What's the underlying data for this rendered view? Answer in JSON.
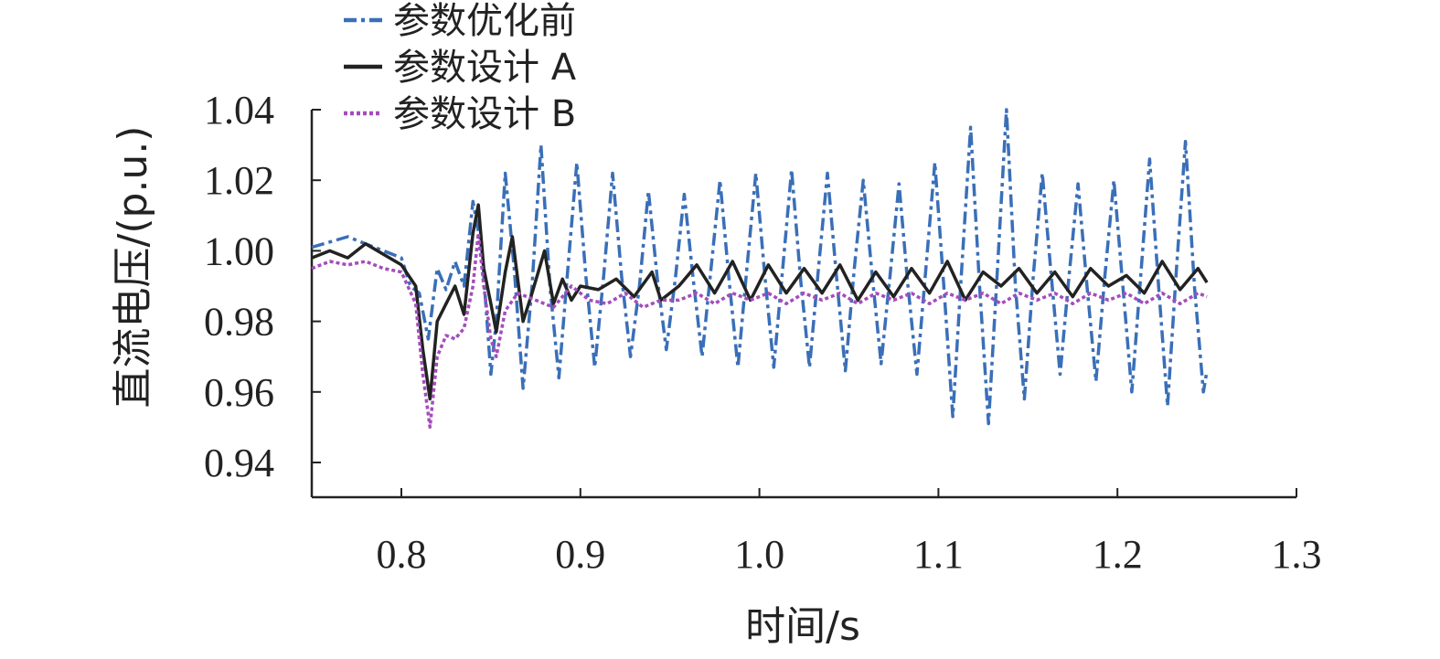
{
  "chart_data": {
    "type": "line",
    "xlabel": "时间/s",
    "ylabel": "直流电压/(p.u.)",
    "xlim": [
      0.75,
      1.3
    ],
    "ylim": [
      0.93,
      1.04
    ],
    "x_ticks": [
      "0.8",
      "0.9",
      "1.0",
      "1.1",
      "1.2",
      "1.3"
    ],
    "y_ticks": [
      "0.94",
      "0.96",
      "0.98",
      "1.00",
      "1.02",
      "1.04"
    ],
    "legend_position": "top-left",
    "series": [
      {
        "name": "参数优化前",
        "color": "#3a6fb8",
        "line_style": "dash-dot",
        "x": [
          0.75,
          0.77,
          0.78,
          0.79,
          0.8,
          0.805,
          0.81,
          0.815,
          0.82,
          0.825,
          0.83,
          0.835,
          0.84,
          0.845,
          0.85,
          0.853,
          0.858,
          0.863,
          0.868,
          0.873,
          0.878,
          0.883,
          0.888,
          0.893,
          0.898,
          0.903,
          0.908,
          0.913,
          0.918,
          0.923,
          0.928,
          0.933,
          0.938,
          0.943,
          0.948,
          0.953,
          0.958,
          0.963,
          0.968,
          0.973,
          0.978,
          0.983,
          0.988,
          0.993,
          0.998,
          1.003,
          1.008,
          1.013,
          1.018,
          1.023,
          1.028,
          1.033,
          1.038,
          1.043,
          1.048,
          1.053,
          1.058,
          1.063,
          1.068,
          1.073,
          1.078,
          1.083,
          1.088,
          1.093,
          1.098,
          1.103,
          1.108,
          1.113,
          1.118,
          1.123,
          1.128,
          1.133,
          1.138,
          1.143,
          1.148,
          1.153,
          1.158,
          1.163,
          1.168,
          1.173,
          1.178,
          1.183,
          1.188,
          1.193,
          1.198,
          1.203,
          1.208,
          1.213,
          1.218,
          1.223,
          1.228,
          1.233,
          1.238,
          1.243,
          1.248,
          1.25
        ],
        "values": [
          1.001,
          1.004,
          1.002,
          1.0,
          0.998,
          0.99,
          0.988,
          0.975,
          0.995,
          0.989,
          0.997,
          0.99,
          1.014,
          1.0,
          0.965,
          0.98,
          1.022,
          0.995,
          0.961,
          0.99,
          1.03,
          0.99,
          0.964,
          0.995,
          1.025,
          0.993,
          0.967,
          0.993,
          1.022,
          0.993,
          0.97,
          0.99,
          1.017,
          0.992,
          0.972,
          0.992,
          1.016,
          0.992,
          0.97,
          0.995,
          1.02,
          0.992,
          0.967,
          0.995,
          1.022,
          0.993,
          0.967,
          0.995,
          1.023,
          0.992,
          0.967,
          0.995,
          1.022,
          0.993,
          0.966,
          0.995,
          1.02,
          0.993,
          0.968,
          0.993,
          1.019,
          0.99,
          0.965,
          0.995,
          1.025,
          0.99,
          0.953,
          0.995,
          1.035,
          0.99,
          0.951,
          0.995,
          1.04,
          0.99,
          0.958,
          0.993,
          1.022,
          0.993,
          0.965,
          0.993,
          1.019,
          0.99,
          0.963,
          0.993,
          1.02,
          0.99,
          0.96,
          0.993,
          1.026,
          0.99,
          0.956,
          0.995,
          1.031,
          0.99,
          0.96,
          0.966
        ]
      },
      {
        "name": "参数设计 A",
        "color": "#222222",
        "line_style": "solid",
        "x": [
          0.75,
          0.76,
          0.77,
          0.78,
          0.79,
          0.8,
          0.808,
          0.812,
          0.816,
          0.82,
          0.825,
          0.83,
          0.835,
          0.84,
          0.843,
          0.846,
          0.85,
          0.853,
          0.858,
          0.862,
          0.868,
          0.873,
          0.88,
          0.885,
          0.89,
          0.895,
          0.9,
          0.91,
          0.92,
          0.93,
          0.94,
          0.945,
          0.955,
          0.965,
          0.975,
          0.985,
          0.995,
          1.005,
          1.015,
          1.025,
          1.035,
          1.045,
          1.055,
          1.065,
          1.075,
          1.085,
          1.095,
          1.105,
          1.115,
          1.125,
          1.135,
          1.145,
          1.155,
          1.165,
          1.175,
          1.185,
          1.195,
          1.205,
          1.215,
          1.225,
          1.235,
          1.245,
          1.25
        ],
        "values": [
          0.998,
          1.0,
          0.998,
          1.002,
          0.999,
          0.996,
          0.99,
          0.972,
          0.958,
          0.98,
          0.985,
          0.99,
          0.982,
          1.005,
          1.013,
          0.995,
          0.985,
          0.977,
          0.994,
          1.004,
          0.98,
          0.988,
          1.0,
          0.985,
          0.992,
          0.986,
          0.99,
          0.989,
          0.992,
          0.987,
          0.994,
          0.986,
          0.99,
          0.996,
          0.988,
          0.997,
          0.986,
          0.996,
          0.988,
          0.995,
          0.988,
          0.996,
          0.986,
          0.994,
          0.987,
          0.995,
          0.988,
          0.997,
          0.986,
          0.994,
          0.99,
          0.995,
          0.988,
          0.994,
          0.987,
          0.995,
          0.99,
          0.993,
          0.988,
          0.997,
          0.989,
          0.995,
          0.991
        ]
      },
      {
        "name": "参数设计 B",
        "color": "#a44dbb",
        "line_style": "dotted",
        "x": [
          0.75,
          0.76,
          0.77,
          0.78,
          0.79,
          0.8,
          0.808,
          0.812,
          0.816,
          0.82,
          0.825,
          0.83,
          0.835,
          0.84,
          0.843,
          0.846,
          0.85,
          0.853,
          0.858,
          0.865,
          0.875,
          0.885,
          0.895,
          0.905,
          0.915,
          0.925,
          0.935,
          0.945,
          0.955,
          0.965,
          0.975,
          0.985,
          0.995,
          1.005,
          1.015,
          1.025,
          1.035,
          1.045,
          1.055,
          1.065,
          1.075,
          1.085,
          1.095,
          1.105,
          1.115,
          1.125,
          1.135,
          1.145,
          1.155,
          1.165,
          1.175,
          1.185,
          1.195,
          1.205,
          1.215,
          1.225,
          1.235,
          1.245,
          1.25
        ],
        "values": [
          0.995,
          0.997,
          0.996,
          0.997,
          0.995,
          0.994,
          0.985,
          0.965,
          0.95,
          0.97,
          0.976,
          0.975,
          0.978,
          0.99,
          1.005,
          0.99,
          0.975,
          0.97,
          0.983,
          0.988,
          0.986,
          0.984,
          0.99,
          0.986,
          0.985,
          0.988,
          0.984,
          0.986,
          0.986,
          0.988,
          0.985,
          0.988,
          0.986,
          0.988,
          0.985,
          0.988,
          0.986,
          0.988,
          0.985,
          0.988,
          0.986,
          0.988,
          0.985,
          0.988,
          0.986,
          0.988,
          0.985,
          0.988,
          0.986,
          0.988,
          0.985,
          0.988,
          0.986,
          0.988,
          0.985,
          0.988,
          0.985,
          0.988,
          0.987
        ]
      }
    ]
  }
}
